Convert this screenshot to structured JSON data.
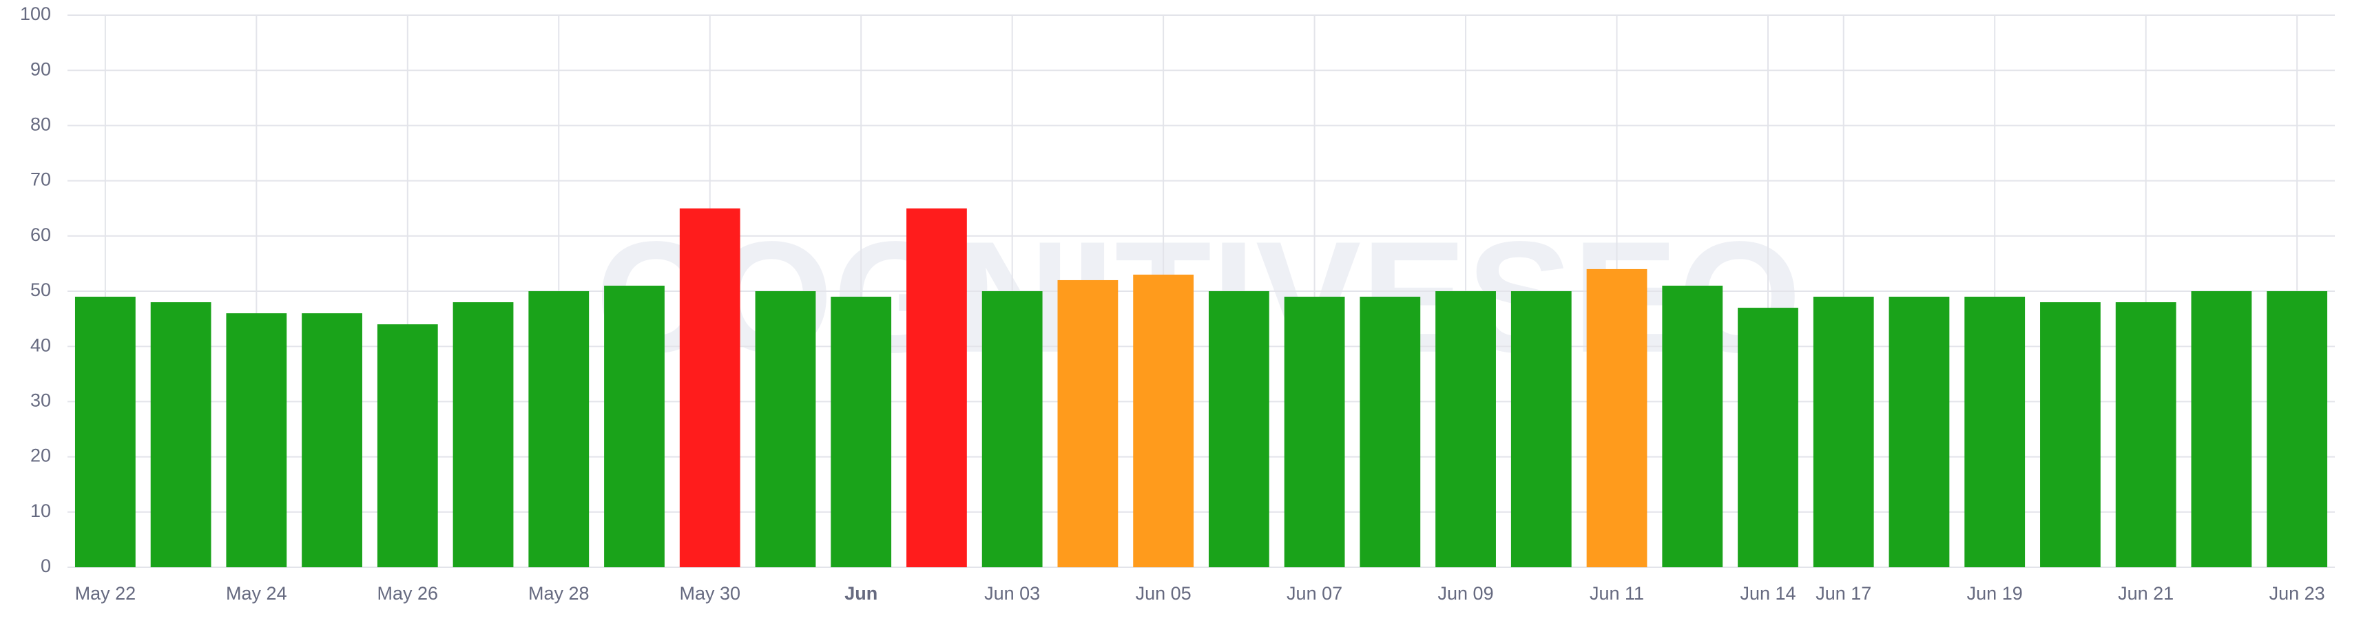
{
  "chart_data": {
    "type": "bar",
    "watermark": "COGNITIVESEO",
    "categories": [
      "May 22",
      null,
      "May 24",
      null,
      "May 26",
      null,
      "May 28",
      null,
      "May 30",
      null,
      "Jun",
      null,
      "Jun 03",
      null,
      "Jun 05",
      null,
      "Jun 07",
      null,
      "Jun 09",
      null,
      "Jun 11",
      null,
      "Jun 14",
      "Jun 17",
      null,
      "Jun 19",
      null,
      "Jun 21",
      null,
      "Jun 23"
    ],
    "values": [
      49,
      48,
      46,
      46,
      44,
      48,
      50,
      51,
      65,
      50,
      49,
      65,
      50,
      52,
      53,
      50,
      49,
      49,
      50,
      50,
      54,
      51,
      47,
      49,
      49,
      49,
      48,
      48,
      50,
      50
    ],
    "colors": [
      "#1aa31a",
      "#1aa31a",
      "#1aa31a",
      "#1aa31a",
      "#1aa31a",
      "#1aa31a",
      "#1aa31a",
      "#1aa31a",
      "#ff1c1c",
      "#1aa31a",
      "#1aa31a",
      "#ff1c1c",
      "#1aa31a",
      "#ff9b1c",
      "#ff9b1c",
      "#1aa31a",
      "#1aa31a",
      "#1aa31a",
      "#1aa31a",
      "#1aa31a",
      "#ff9b1c",
      "#1aa31a",
      "#1aa31a",
      "#1aa31a",
      "#1aa31a",
      "#1aa31a",
      "#1aa31a",
      "#1aa31a",
      "#1aa31a",
      "#1aa31a"
    ],
    "ylim": [
      0,
      100
    ],
    "yticks": [
      0,
      10,
      20,
      30,
      40,
      50,
      60,
      70,
      80,
      90,
      100
    ],
    "grid": true
  }
}
